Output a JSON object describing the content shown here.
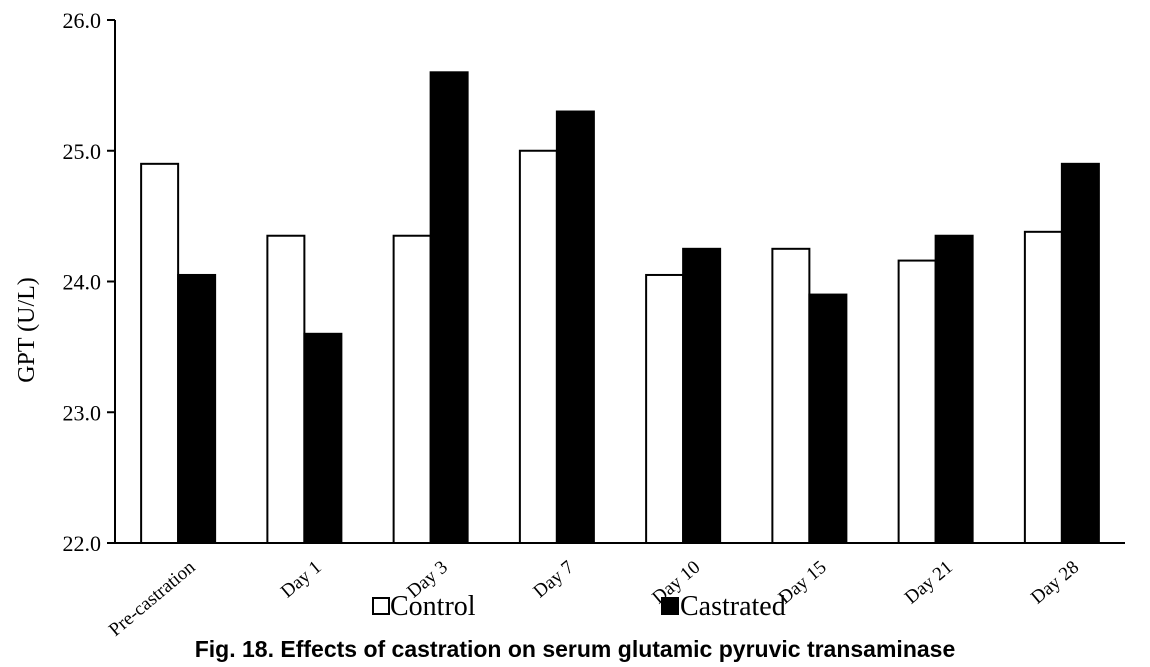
{
  "chart_data": {
    "type": "bar",
    "title": "",
    "xlabel": "",
    "ylabel": "GPT (U/L)",
    "ylim": [
      22.0,
      26.0
    ],
    "yticks": [
      "22.0",
      "23.0",
      "24.0",
      "25.0",
      "26.0"
    ],
    "categories": [
      "Pre-castration",
      "Day 1",
      "Day 3",
      "Day 7",
      "Day 10",
      "Day 15",
      "Day 21",
      "Day 28"
    ],
    "series": [
      {
        "name": "Control",
        "color": "#ffffff",
        "stroke": "#000000",
        "values": [
          24.9,
          24.35,
          24.35,
          25.0,
          24.05,
          24.25,
          24.16,
          24.38
        ]
      },
      {
        "name": "Castrated",
        "color": "#000000",
        "stroke": "#000000",
        "values": [
          24.05,
          23.6,
          25.6,
          25.3,
          24.25,
          23.9,
          24.35,
          24.9
        ]
      }
    ],
    "legend_position": "bottom",
    "grid": false
  },
  "caption": "Fig. 18. Effects of castration on serum glutamic pyruvic transaminase"
}
